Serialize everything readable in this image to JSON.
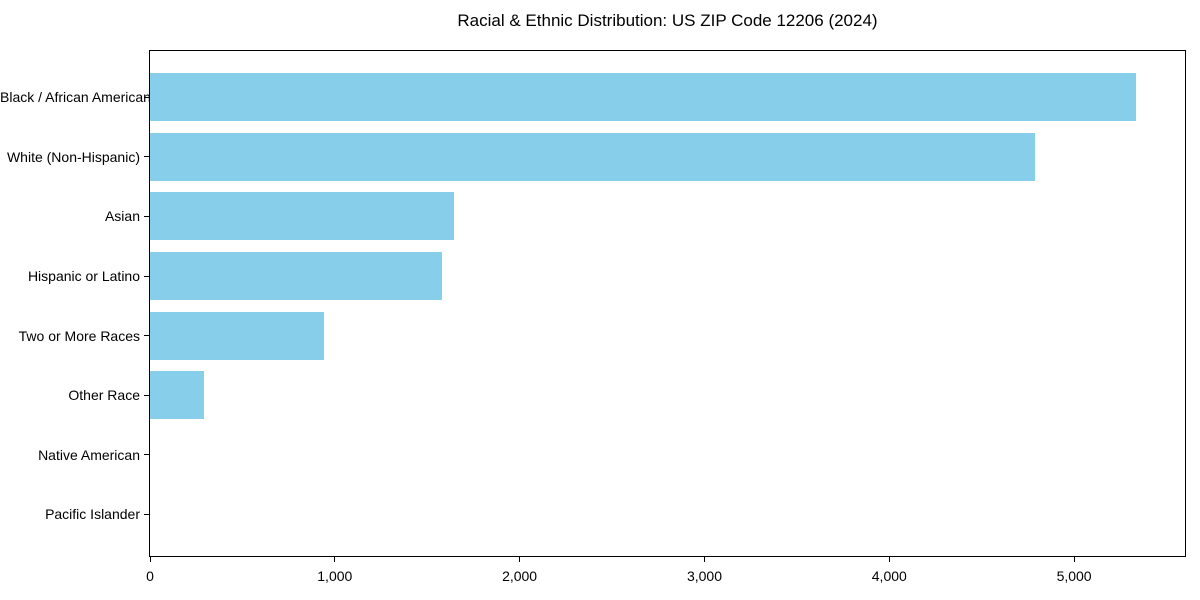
{
  "chart_data": {
    "type": "bar",
    "orientation": "horizontal",
    "title": "Racial & Ethnic Distribution: US ZIP Code 12206 (2024)",
    "categories": [
      "Black / African American",
      "White (Non-Hispanic)",
      "Asian",
      "Hispanic or Latino",
      "Two or More Races",
      "Other Race",
      "Native American",
      "Pacific Islander"
    ],
    "values": [
      5333,
      4789,
      1643,
      1580,
      941,
      293,
      0,
      0
    ],
    "xlabel": "",
    "ylabel": "",
    "xlim": [
      0,
      5600
    ],
    "x_ticks": [
      {
        "value": 0,
        "label": "0"
      },
      {
        "value": 1000,
        "label": "1,000"
      },
      {
        "value": 2000,
        "label": "2,000"
      },
      {
        "value": 3000,
        "label": "3,000"
      },
      {
        "value": 4000,
        "label": "4,000"
      },
      {
        "value": 5000,
        "label": "5,000"
      }
    ],
    "bar_color": "#87CEEB",
    "frame_color": "#000000",
    "text_color": "#000000",
    "grid": false,
    "legend": null
  }
}
